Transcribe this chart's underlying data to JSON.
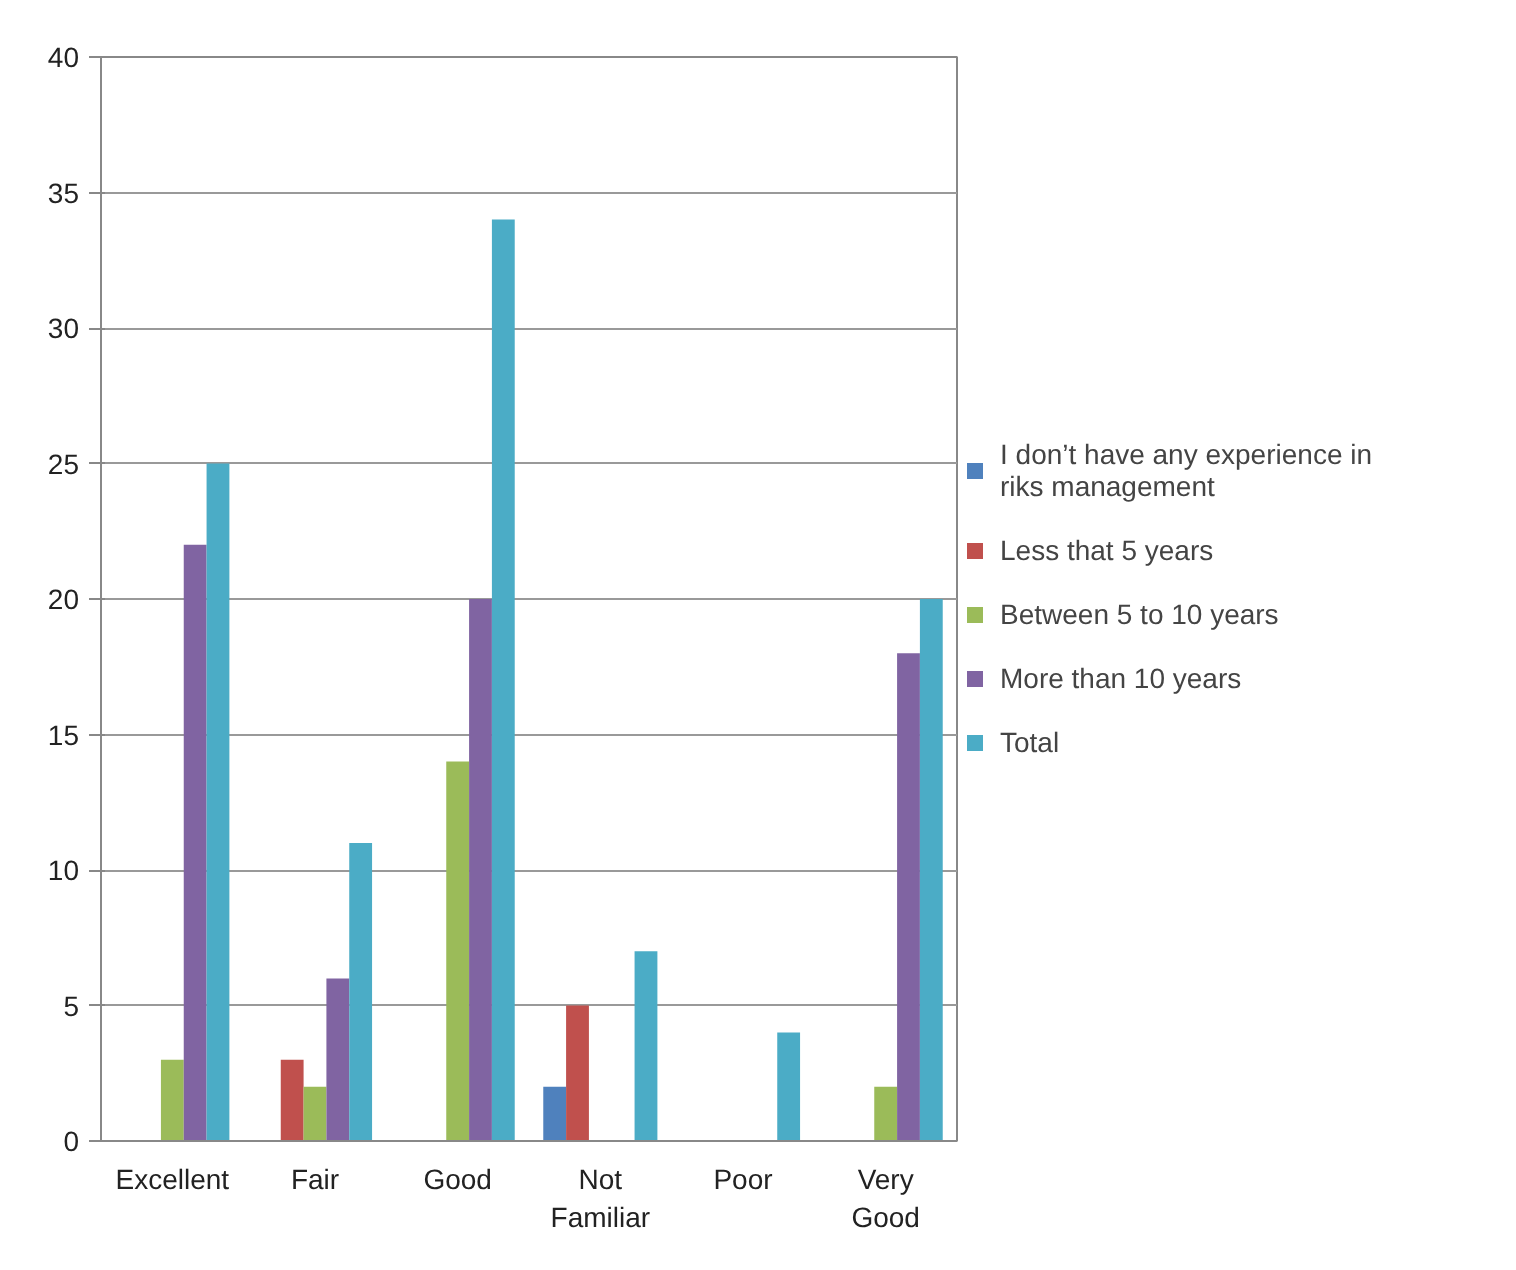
{
  "chart_data": {
    "type": "bar",
    "categories": [
      "Excellent",
      "Fair",
      "Good",
      "Not Familiar",
      "Poor",
      "Very Good"
    ],
    "series": [
      {
        "name": "I don’t have any experience in riks management",
        "color": "#4f81bd",
        "values": [
          0,
          0,
          0,
          2,
          0,
          0
        ]
      },
      {
        "name": "Less that 5 years",
        "color": "#c0504d",
        "values": [
          0,
          3,
          0,
          5,
          0,
          0
        ]
      },
      {
        "name": "Between 5 to 10 years",
        "color": "#9bbb59",
        "values": [
          3,
          2,
          14,
          0,
          0,
          2
        ]
      },
      {
        "name": "More than 10 years",
        "color": "#8064a2",
        "values": [
          22,
          6,
          20,
          0,
          0,
          18
        ]
      },
      {
        "name": "Total",
        "color": "#4bacc6",
        "values": [
          25,
          11,
          34,
          7,
          4,
          20
        ]
      }
    ],
    "ylim": [
      0,
      40
    ],
    "yticks": [
      0,
      5,
      10,
      15,
      20,
      25,
      30,
      35,
      40
    ],
    "grid": "y",
    "legend": "right"
  }
}
